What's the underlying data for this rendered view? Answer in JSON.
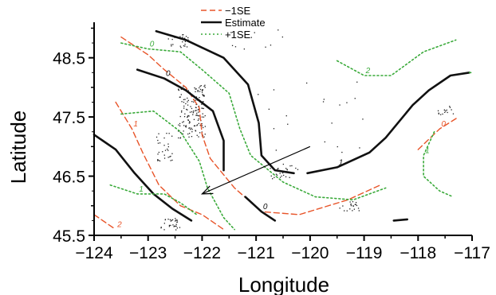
{
  "chart_data": {
    "type": "line",
    "xlabel": "Longitude",
    "ylabel": "Latitude",
    "xlim": [
      -124,
      -117
    ],
    "ylim": [
      45.5,
      49.1
    ],
    "x_ticks": [
      -124,
      -123,
      -122,
      -121,
      -120,
      -119,
      -118,
      -117
    ],
    "x_tick_labels": [
      "−124",
      "−123",
      "−122",
      "−121",
      "−120",
      "−119",
      "−118",
      "−117"
    ],
    "y_ticks": [
      45.5,
      46.5,
      47.5,
      48.5
    ],
    "y_tick_labels": [
      "45.5",
      "46.5",
      "47.5",
      "48.5"
    ],
    "grid": false,
    "legend_position": "top-center",
    "series": [
      {
        "name": "−1SE",
        "style": "dashed",
        "color": "#e8552a",
        "lines": [
          {
            "label": "",
            "points": [
              [
                -123.5,
                48.85
              ],
              [
                -123.0,
                48.55
              ],
              [
                -122.7,
                48.3
              ],
              [
                -122.3,
                48.0
              ],
              [
                -122.05,
                47.65
              ],
              [
                -122.0,
                47.2
              ],
              [
                -121.85,
                46.8
              ],
              [
                -121.4,
                46.3
              ],
              [
                -120.9,
                45.9
              ],
              [
                -120.2,
                45.85
              ],
              [
                -119.3,
                46.1
              ],
              [
                -118.7,
                46.35
              ]
            ]
          },
          {
            "label": "1",
            "points": [
              [
                -123.6,
                47.75
              ],
              [
                -123.3,
                47.3
              ],
              [
                -123.1,
                46.9
              ],
              [
                -122.8,
                46.35
              ],
              [
                -122.4,
                46.0
              ],
              [
                -122.0,
                45.85
              ],
              [
                -121.6,
                45.6
              ]
            ]
          },
          {
            "label": "2",
            "points": [
              [
                -124.0,
                45.85
              ],
              [
                -123.6,
                45.6
              ]
            ]
          },
          {
            "label": "0",
            "points": [
              [
                -118.0,
                46.95
              ],
              [
                -117.6,
                47.3
              ],
              [
                -117.25,
                47.5
              ]
            ]
          }
        ]
      },
      {
        "name": "Estimate",
        "style": "solid",
        "color": "#111111",
        "lines": [
          {
            "label": "0",
            "points": [
              [
                -123.2,
                48.3
              ],
              [
                -122.7,
                48.15
              ],
              [
                -122.3,
                47.95
              ],
              [
                -121.8,
                47.6
              ],
              [
                -121.6,
                47.1
              ],
              [
                -121.6,
                46.6
              ]
            ]
          },
          {
            "label": "",
            "points": [
              [
                -122.85,
                48.95
              ],
              [
                -122.3,
                48.8
              ],
              [
                -121.6,
                48.5
              ],
              [
                -121.15,
                48.05
              ],
              [
                -120.95,
                47.4
              ],
              [
                -120.9,
                46.85
              ],
              [
                -120.65,
                46.6
              ],
              [
                -120.3,
                46.55
              ]
            ]
          },
          {
            "label": "1",
            "points": [
              [
                -120.05,
                46.55
              ],
              [
                -119.5,
                46.65
              ],
              [
                -118.9,
                46.9
              ],
              [
                -118.6,
                47.15
              ],
              [
                -118.1,
                47.7
              ],
              [
                -117.8,
                47.95
              ],
              [
                -117.4,
                48.2
              ],
              [
                -117.05,
                48.25
              ]
            ]
          },
          {
            "label": "",
            "points": [
              [
                -124.0,
                47.2
              ],
              [
                -123.6,
                46.95
              ],
              [
                -123.25,
                46.55
              ],
              [
                -122.9,
                46.2
              ],
              [
                -122.55,
                45.95
              ],
              [
                -122.2,
                45.75
              ]
            ]
          },
          {
            "label": "0",
            "points": [
              [
                -121.2,
                46.15
              ],
              [
                -120.9,
                45.9
              ],
              [
                -120.65,
                45.75
              ]
            ]
          },
          {
            "label": "",
            "points": [
              [
                -118.45,
                45.75
              ],
              [
                -118.2,
                45.77
              ]
            ]
          }
        ]
      },
      {
        "name": "+1SE",
        "style": "dotted",
        "color": "#3aaa3a",
        "lines": [
          {
            "label": "2",
            "points": [
              [
                -119.5,
                48.45
              ],
              [
                -119.0,
                48.2
              ],
              [
                -118.5,
                48.2
              ],
              [
                -117.9,
                48.6
              ],
              [
                -117.3,
                48.8
              ]
            ]
          },
          {
            "label": "0",
            "points": [
              [
                -123.5,
                48.75
              ],
              [
                -123.0,
                48.65
              ],
              [
                -122.4,
                48.6
              ],
              [
                -122.0,
                48.3
              ],
              [
                -121.5,
                47.9
              ],
              [
                -121.3,
                47.3
              ],
              [
                -121.1,
                46.85
              ],
              [
                -120.5,
                46.4
              ],
              [
                -119.9,
                46.15
              ],
              [
                -119.2,
                46.1
              ],
              [
                -118.6,
                46.3
              ]
            ]
          },
          {
            "label": "",
            "points": [
              [
                -123.5,
                47.55
              ],
              [
                -122.9,
                47.6
              ],
              [
                -122.4,
                47.25
              ],
              [
                -122.05,
                46.75
              ],
              [
                -121.9,
                46.3
              ],
              [
                -121.6,
                45.8
              ],
              [
                -121.4,
                45.6
              ]
            ]
          },
          {
            "label": "1",
            "points": [
              [
                -123.7,
                46.35
              ],
              [
                -123.2,
                46.2
              ],
              [
                -122.7,
                46.2
              ],
              [
                -122.4,
                46.05
              ],
              [
                -122.1,
                45.85
              ]
            ]
          },
          {
            "label": "1",
            "points": [
              [
                -117.7,
                47.25
              ],
              [
                -117.9,
                46.85
              ],
              [
                -117.9,
                46.5
              ],
              [
                -117.6,
                46.25
              ],
              [
                -117.35,
                46.15
              ]
            ]
          },
          {
            "label": "",
            "points": [
              [
                -117.05,
                48.25
              ],
              [
                -117.0,
                48.25
              ]
            ]
          }
        ]
      }
    ],
    "arrow": {
      "from": [
        -120.0,
        47.0
      ],
      "to": [
        -122.0,
        46.2
      ]
    }
  }
}
